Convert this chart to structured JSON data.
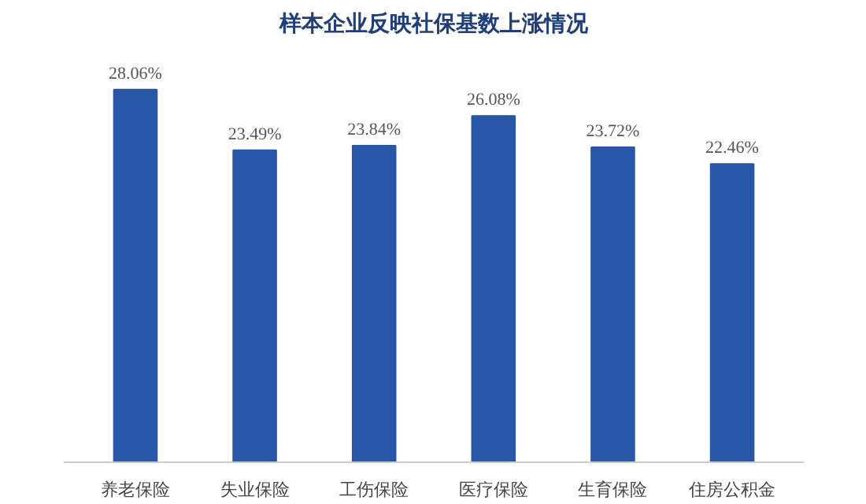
{
  "chart_data": {
    "type": "bar",
    "title": "样本企业反映社保基数上涨情况",
    "categories": [
      "养老保险",
      "失业保险",
      "工伤保险",
      "医疗保险",
      "生育保险",
      "住房公积金"
    ],
    "values": [
      28.06,
      23.49,
      23.84,
      26.08,
      23.72,
      22.46
    ],
    "value_labels": [
      "28.06%",
      "23.49%",
      "23.84%",
      "26.08%",
      "23.72%",
      "22.46%"
    ],
    "color": "#2857a8",
    "grid": false
  }
}
